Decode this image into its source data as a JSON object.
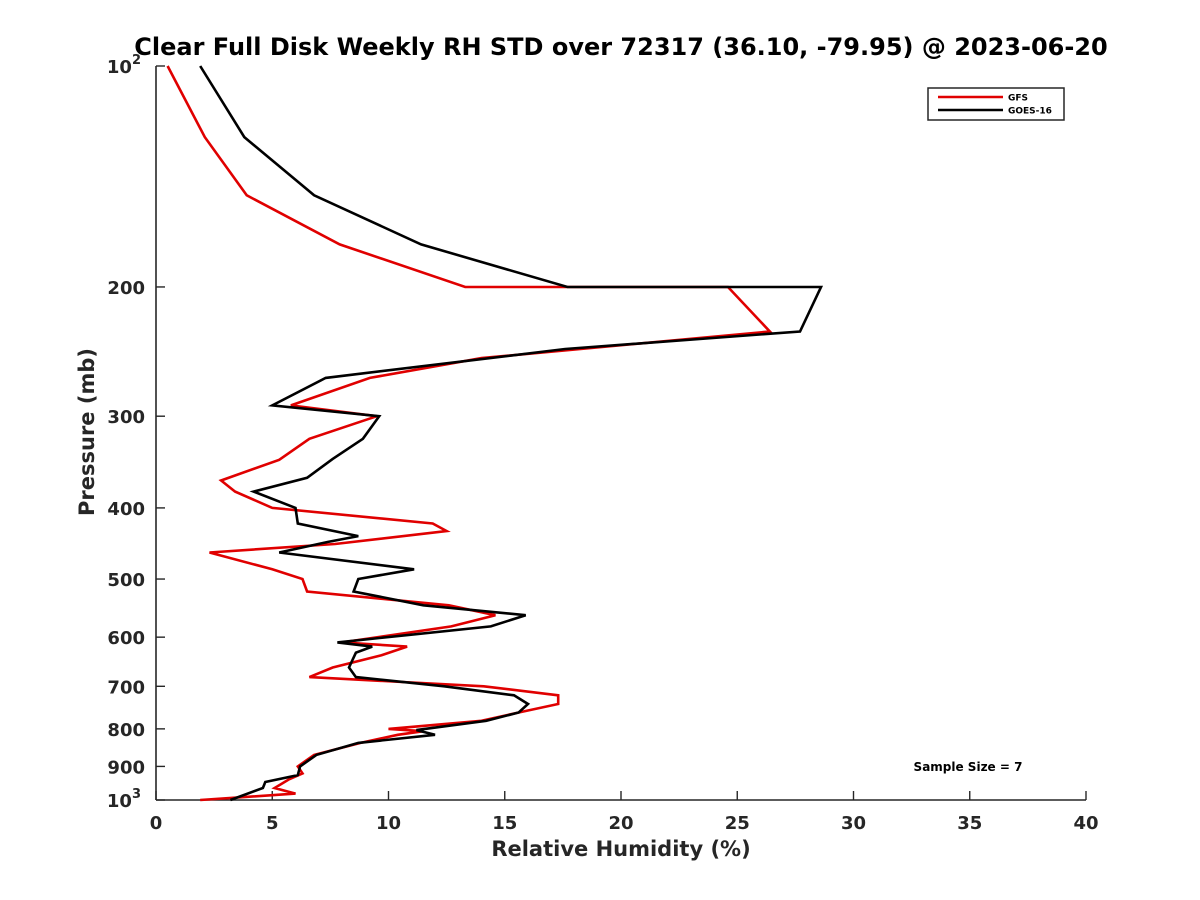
{
  "chart_data": {
    "type": "line",
    "title": "Clear Full Disk Weekly RH STD over 72317 (36.10, -79.95) @ 2023-06-20",
    "xlabel": "Relative Humidity (%)",
    "ylabel": "Pressure (mb)",
    "xlim": [
      0,
      40
    ],
    "ylim": [
      100,
      1000
    ],
    "y_scale": "log",
    "y_reversed": true,
    "grid": false,
    "legend_position": "top-right",
    "x_ticks": [
      0,
      5,
      10,
      15,
      20,
      25,
      30,
      35,
      40
    ],
    "x_tick_labels": [
      "0",
      "5",
      "10",
      "15",
      "20",
      "25",
      "30",
      "35",
      "40"
    ],
    "y_ticks": [
      100,
      200,
      300,
      400,
      500,
      600,
      700,
      800,
      900,
      1000
    ],
    "y_tick_labels": [
      {
        "base": "10",
        "exp": "2"
      },
      {
        "base": "200",
        "exp": ""
      },
      {
        "base": "300",
        "exp": ""
      },
      {
        "base": "400",
        "exp": ""
      },
      {
        "base": "500",
        "exp": ""
      },
      {
        "base": "600",
        "exp": ""
      },
      {
        "base": "700",
        "exp": ""
      },
      {
        "base": "800",
        "exp": ""
      },
      {
        "base": "900",
        "exp": ""
      },
      {
        "base": "10",
        "exp": "3"
      }
    ],
    "annotation": "Sample Size = 7",
    "series": [
      {
        "name": "GFS",
        "color": "#e00000",
        "points": [
          [
            0.5,
            100
          ],
          [
            2.1,
            125
          ],
          [
            3.9,
            150
          ],
          [
            7.9,
            175
          ],
          [
            13.3,
            200
          ],
          [
            24.6,
            200
          ],
          [
            26.4,
            230
          ],
          [
            14.0,
            250
          ],
          [
            9.2,
            266
          ],
          [
            5.8,
            290
          ],
          [
            9.5,
            300
          ],
          [
            6.6,
            322
          ],
          [
            5.3,
            344
          ],
          [
            2.8,
            367
          ],
          [
            3.4,
            380
          ],
          [
            5.0,
            400
          ],
          [
            11.9,
            420
          ],
          [
            12.5,
            430
          ],
          [
            7.7,
            448
          ],
          [
            2.3,
            460
          ],
          [
            5.0,
            485
          ],
          [
            6.3,
            500
          ],
          [
            6.5,
            520
          ],
          [
            12.6,
            543
          ],
          [
            14.6,
            560
          ],
          [
            12.7,
            580
          ],
          [
            8.0,
            610
          ],
          [
            10.8,
            618
          ],
          [
            9.7,
            635
          ],
          [
            7.6,
            660
          ],
          [
            6.6,
            680
          ],
          [
            14.1,
            700
          ],
          [
            17.3,
            720
          ],
          [
            17.3,
            740
          ],
          [
            15.6,
            760
          ],
          [
            14.0,
            780
          ],
          [
            10.0,
            800
          ],
          [
            11.5,
            806
          ],
          [
            10.4,
            815
          ],
          [
            8.8,
            836
          ],
          [
            6.8,
            868
          ],
          [
            6.1,
            900
          ],
          [
            6.3,
            920
          ],
          [
            5.7,
            938
          ],
          [
            5.1,
            963
          ],
          [
            6.0,
            980
          ],
          [
            1.9,
            1000
          ]
        ]
      },
      {
        "name": "GOES-16",
        "color": "#000000",
        "points": [
          [
            1.9,
            100
          ],
          [
            3.8,
            125
          ],
          [
            6.8,
            150
          ],
          [
            11.4,
            175
          ],
          [
            17.7,
            200
          ],
          [
            28.6,
            200
          ],
          [
            27.7,
            230
          ],
          [
            17.6,
            243
          ],
          [
            7.3,
            266
          ],
          [
            5.0,
            290
          ],
          [
            9.6,
            300
          ],
          [
            8.9,
            322
          ],
          [
            7.6,
            343
          ],
          [
            6.5,
            364
          ],
          [
            4.2,
            380
          ],
          [
            6.0,
            400
          ],
          [
            6.1,
            420
          ],
          [
            8.7,
            437
          ],
          [
            7.4,
            445
          ],
          [
            5.3,
            460
          ],
          [
            11.1,
            485
          ],
          [
            8.7,
            500
          ],
          [
            8.5,
            520
          ],
          [
            11.5,
            543
          ],
          [
            15.9,
            560
          ],
          [
            14.4,
            580
          ],
          [
            7.8,
            610
          ],
          [
            9.3,
            618
          ],
          [
            8.6,
            630
          ],
          [
            8.3,
            660
          ],
          [
            8.6,
            680
          ],
          [
            12.4,
            700
          ],
          [
            15.4,
            720
          ],
          [
            16.0,
            740
          ],
          [
            15.6,
            760
          ],
          [
            14.2,
            780
          ],
          [
            11.2,
            803
          ],
          [
            12.0,
            815
          ],
          [
            8.7,
            836
          ],
          [
            6.9,
            868
          ],
          [
            6.2,
            900
          ],
          [
            6.1,
            925
          ],
          [
            4.7,
            945
          ],
          [
            4.6,
            963
          ],
          [
            3.2,
            1000
          ]
        ]
      }
    ]
  }
}
